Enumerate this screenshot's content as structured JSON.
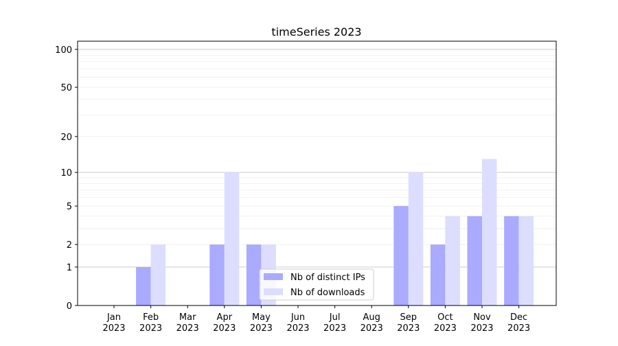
{
  "chart_data": {
    "type": "bar",
    "title": "timeSeries 2023",
    "xlabel": "",
    "ylabel": "",
    "yscale": "log(1+y)",
    "ylim": [
      0,
      116
    ],
    "yticks": [
      0,
      1,
      2,
      5,
      10,
      20,
      50,
      100
    ],
    "grid": true,
    "legend_placement": "lower-center",
    "categories": [
      "Jan\n2023",
      "Feb\n2023",
      "Mar\n2023",
      "Apr\n2023",
      "May\n2023",
      "Jun\n2023",
      "Jul\n2023",
      "Aug\n2023",
      "Sep\n2023",
      "Oct\n2023",
      "Nov\n2023",
      "Dec\n2023"
    ],
    "series": [
      {
        "name": "Nb of distinct IPs",
        "color": "#aaaaff",
        "values": [
          0,
          1,
          0,
          2,
          2,
          0,
          0,
          0,
          5,
          2,
          4,
          4
        ]
      },
      {
        "name": "Nb of downloads",
        "color": "#ddddff",
        "values": [
          0,
          2,
          0,
          10,
          2,
          0,
          0,
          0,
          10,
          4,
          13,
          4
        ]
      }
    ]
  }
}
